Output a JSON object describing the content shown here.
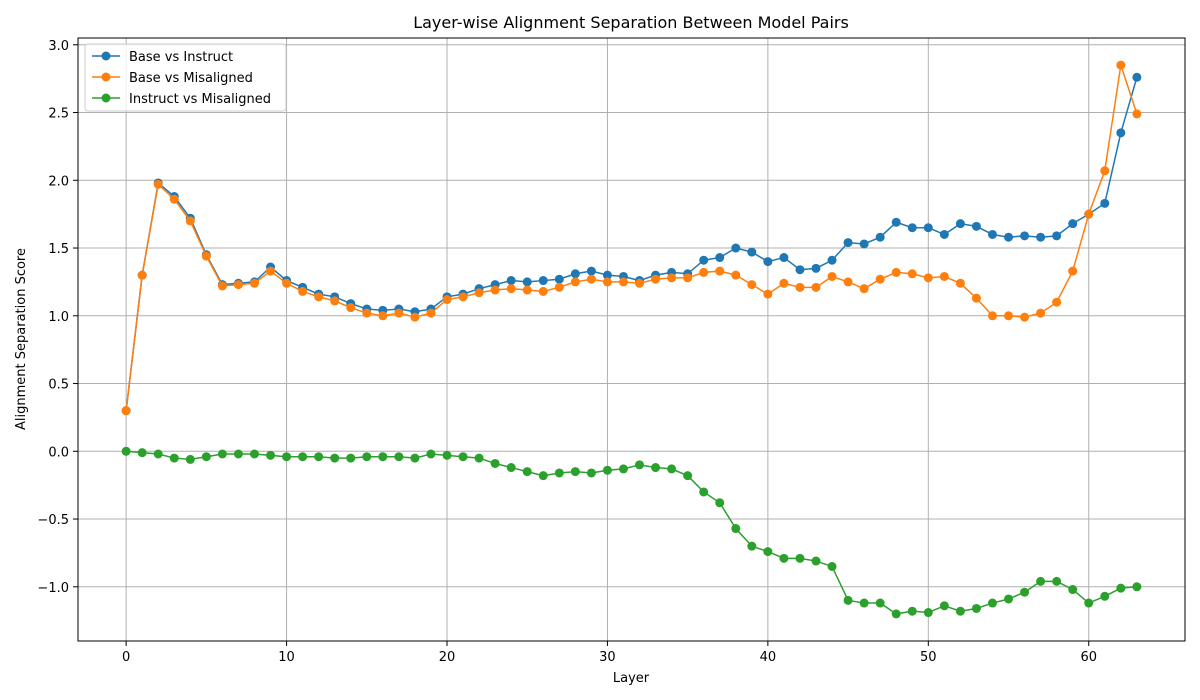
{
  "chart_data": {
    "type": "line",
    "title": "Layer-wise Alignment Separation Between Model Pairs",
    "xlabel": "Layer",
    "ylabel": "Alignment Separation Score",
    "xlim": [
      -3,
      66
    ],
    "ylim": [
      -1.4,
      3.05
    ],
    "xticks": [
      0,
      10,
      20,
      30,
      40,
      50,
      60
    ],
    "yticks": [
      -1.0,
      -0.5,
      0.0,
      0.5,
      1.0,
      1.5,
      2.0,
      2.5,
      3.0
    ],
    "ytick_labels": [
      "−1.0",
      "−0.5",
      "0.0",
      "0.5",
      "1.0",
      "1.5",
      "2.0",
      "2.5",
      "3.0"
    ],
    "grid": true,
    "legend_position": "top-left",
    "x": [
      0,
      1,
      2,
      3,
      4,
      5,
      6,
      7,
      8,
      9,
      10,
      11,
      12,
      13,
      14,
      15,
      16,
      17,
      18,
      19,
      20,
      21,
      22,
      23,
      24,
      25,
      26,
      27,
      28,
      29,
      30,
      31,
      32,
      33,
      34,
      35,
      36,
      37,
      38,
      39,
      40,
      41,
      42,
      43,
      44,
      45,
      46,
      47,
      48,
      49,
      50,
      51,
      52,
      53,
      54,
      55,
      56,
      57,
      58,
      59,
      60,
      61,
      62,
      63
    ],
    "series": [
      {
        "name": "Base vs Instruct",
        "color": "#1f77b4",
        "values": [
          0.3,
          1.3,
          1.98,
          1.88,
          1.72,
          1.45,
          1.23,
          1.24,
          1.25,
          1.36,
          1.26,
          1.21,
          1.16,
          1.14,
          1.09,
          1.05,
          1.04,
          1.05,
          1.03,
          1.05,
          1.14,
          1.16,
          1.2,
          1.23,
          1.26,
          1.25,
          1.26,
          1.27,
          1.31,
          1.33,
          1.3,
          1.29,
          1.26,
          1.3,
          1.32,
          1.31,
          1.41,
          1.43,
          1.5,
          1.47,
          1.4,
          1.43,
          1.34,
          1.35,
          1.41,
          1.54,
          1.53,
          1.58,
          1.69,
          1.65,
          1.65,
          1.6,
          1.68,
          1.66,
          1.6,
          1.58,
          1.59,
          1.58,
          1.59,
          1.68,
          1.75,
          1.83,
          2.35,
          2.76
        ]
      },
      {
        "name": "Base vs Misaligned",
        "color": "#ff7f0e",
        "values": [
          0.3,
          1.3,
          1.97,
          1.86,
          1.7,
          1.44,
          1.22,
          1.23,
          1.24,
          1.33,
          1.24,
          1.18,
          1.14,
          1.11,
          1.06,
          1.02,
          1.0,
          1.02,
          0.99,
          1.02,
          1.12,
          1.14,
          1.17,
          1.19,
          1.2,
          1.19,
          1.18,
          1.21,
          1.25,
          1.27,
          1.25,
          1.25,
          1.24,
          1.27,
          1.28,
          1.28,
          1.32,
          1.33,
          1.3,
          1.23,
          1.16,
          1.24,
          1.21,
          1.21,
          1.29,
          1.25,
          1.2,
          1.27,
          1.32,
          1.31,
          1.28,
          1.29,
          1.24,
          1.13,
          1.0,
          1.0,
          0.99,
          1.02,
          1.1,
          1.33,
          1.75,
          2.07,
          2.85,
          2.49
        ]
      },
      {
        "name": "Instruct vs Misaligned",
        "color": "#2ca02c",
        "values": [
          0.0,
          -0.01,
          -0.02,
          -0.05,
          -0.06,
          -0.04,
          -0.02,
          -0.02,
          -0.02,
          -0.03,
          -0.04,
          -0.04,
          -0.04,
          -0.05,
          -0.05,
          -0.04,
          -0.04,
          -0.04,
          -0.05,
          -0.02,
          -0.03,
          -0.04,
          -0.05,
          -0.09,
          -0.12,
          -0.15,
          -0.18,
          -0.16,
          -0.15,
          -0.16,
          -0.14,
          -0.13,
          -0.1,
          -0.12,
          -0.13,
          -0.18,
          -0.3,
          -0.38,
          -0.57,
          -0.7,
          -0.74,
          -0.79,
          -0.79,
          -0.81,
          -0.85,
          -1.1,
          -1.12,
          -1.12,
          -1.2,
          -1.18,
          -1.19,
          -1.14,
          -1.18,
          -1.16,
          -1.12,
          -1.09,
          -1.04,
          -0.96,
          -0.96,
          -1.02,
          -1.12,
          -1.07,
          -1.01,
          -1.0
        ]
      }
    ]
  }
}
